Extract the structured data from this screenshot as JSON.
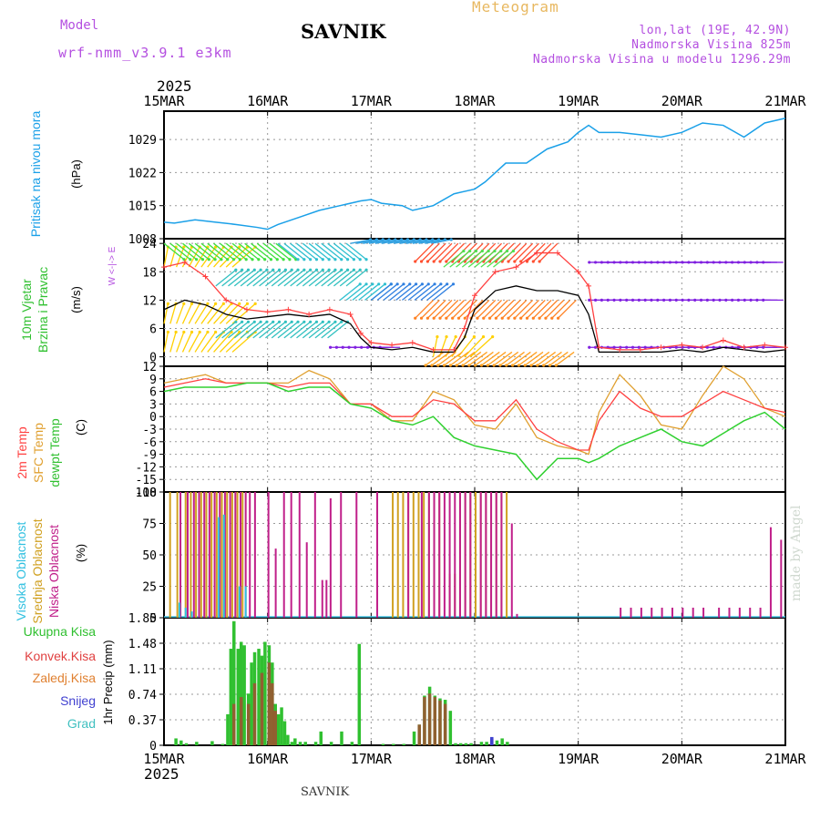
{
  "header": {
    "model_label": "Model",
    "model_value": "wrf-nmm_v3.9.1  e3km",
    "station": "SAVNIK",
    "meteogram": "Meteogram",
    "lonlat": "lon,lat (19E, 42.9N)",
    "elevation": "Nadmorska Visina 825m",
    "model_elevation": "Nadmorska Visina u modelu 1296.29m"
  },
  "year": "2025",
  "footer_station": "SAVNIK",
  "credit": "made by Angel",
  "colors": {
    "pressure": "#1aa0e8",
    "wind_speed": "#000000",
    "gust": "#ff4040",
    "temp2m": "#ff4040",
    "sfc_temp": "#e0a030",
    "dewpt": "#30d030",
    "high_cloud": "#30c0e0",
    "mid_cloud": "#d0a020",
    "low_cloud": "#c0208a",
    "total_precip": "#30c030",
    "conv_precip": "#e04040",
    "snow": "#4040d0",
    "grad": "#40c0c0"
  },
  "chart_data": [
    {
      "type": "line",
      "id": "pressure",
      "ylabel_lines": [
        "Pritisak na nivou mora"
      ],
      "unit": "(hPa)",
      "ylim": [
        1008,
        1035
      ],
      "yticks": [
        1008,
        1015,
        1022,
        1029
      ],
      "x_categories": [
        "15MAR",
        "16MAR",
        "17MAR",
        "18MAR",
        "19MAR",
        "20MAR",
        "21MAR"
      ],
      "x_days": [
        0,
        1,
        2,
        3,
        4,
        5,
        6
      ],
      "series": [
        {
          "name": "Pressure",
          "x": [
            0,
            0.1,
            0.3,
            0.5,
            0.7,
            0.9,
            1.0,
            1.1,
            1.3,
            1.5,
            1.7,
            1.9,
            2.0,
            2.1,
            2.3,
            2.4,
            2.6,
            2.8,
            3.0,
            3.1,
            3.2,
            3.3,
            3.5,
            3.7,
            3.9,
            4.0,
            4.1,
            4.2,
            4.4,
            4.6,
            4.8,
            5.0,
            5.2,
            5.4,
            5.6,
            5.8,
            6.0
          ],
          "y": [
            1011.5,
            1011.3,
            1012.0,
            1011.5,
            1011.0,
            1010.4,
            1010.0,
            1011.0,
            1012.5,
            1014.0,
            1015.0,
            1016.0,
            1016.3,
            1015.5,
            1015.0,
            1014.0,
            1015.0,
            1017.5,
            1018.5,
            1020.0,
            1022.0,
            1024.0,
            1024.0,
            1027.0,
            1028.5,
            1030.5,
            1032.0,
            1030.5,
            1030.5,
            1030.0,
            1029.5,
            1030.5,
            1032.5,
            1032.0,
            1029.5,
            1032.5,
            1033.5
          ]
        }
      ]
    },
    {
      "type": "line",
      "id": "wind",
      "ylabel_lines": [
        "10m Vjetar",
        "Brzina i Pravac"
      ],
      "unit": "(m/s)",
      "ylim": [
        -2,
        25
      ],
      "yticks": [
        0,
        6,
        12,
        18,
        24
      ],
      "compass": "W <-|-> E",
      "series": [
        {
          "name": "Wind speed",
          "x": [
            0,
            0.2,
            0.4,
            0.6,
            0.8,
            1.0,
            1.2,
            1.4,
            1.6,
            1.8,
            1.9,
            2.0,
            2.2,
            2.4,
            2.6,
            2.8,
            2.9,
            3.0,
            3.2,
            3.4,
            3.6,
            3.8,
            4.0,
            4.1,
            4.2,
            4.4,
            4.6,
            4.8,
            5.0,
            5.2,
            5.4,
            5.6,
            5.8,
            6.0
          ],
          "y": [
            10,
            12,
            11,
            9,
            8,
            8.5,
            9,
            8.5,
            9,
            7,
            4,
            2,
            1.5,
            2,
            1,
            1,
            4,
            10,
            14,
            15,
            14,
            14,
            13,
            9,
            1,
            1,
            1,
            1,
            1.5,
            1,
            2,
            1.5,
            1,
            1.5
          ]
        },
        {
          "name": "Gust",
          "x": [
            0,
            0.2,
            0.4,
            0.6,
            0.8,
            1.0,
            1.2,
            1.4,
            1.6,
            1.8,
            1.9,
            2.0,
            2.2,
            2.4,
            2.6,
            2.8,
            2.9,
            3.0,
            3.2,
            3.4,
            3.6,
            3.8,
            4.0,
            4.1,
            4.2,
            4.4,
            4.6,
            4.8,
            5.0,
            5.2,
            5.4,
            5.6,
            5.8,
            6.0
          ],
          "y": [
            19,
            20,
            17,
            12,
            10,
            9.5,
            10,
            9,
            10,
            9,
            5,
            3,
            2.5,
            3,
            1.5,
            1.5,
            6,
            13,
            18,
            19,
            22,
            22,
            18,
            15,
            2,
            1.5,
            1.5,
            2,
            2.5,
            2,
            3.5,
            2,
            2.5,
            2
          ]
        }
      ],
      "barb_rows": [
        {
          "level": 1,
          "x_from": 0.0,
          "x_to": 0.7,
          "direction": "fan",
          "color": "#ffd000"
        },
        {
          "level": 7,
          "x_from": 0.0,
          "x_to": 0.7,
          "direction": "fan",
          "color": "#ffd000"
        },
        {
          "level": 19,
          "x_from": 0.0,
          "x_to": 0.7,
          "direction": "fan",
          "color": "#ffd000"
        },
        {
          "level": 24,
          "x_from": 0.0,
          "x_to": 1.1,
          "direction": "se",
          "color": "#40e040"
        },
        {
          "level": 4,
          "x_from": 0.5,
          "x_to": 1.6,
          "direction": "ne",
          "color": "#30c0c0"
        },
        {
          "level": 15,
          "x_from": 0.5,
          "x_to": 1.8,
          "direction": "ne",
          "color": "#30c0c0"
        },
        {
          "level": 24,
          "x_from": 1.1,
          "x_to": 1.8,
          "direction": "se",
          "color": "#30c0d0"
        },
        {
          "level": 12,
          "x_from": 1.7,
          "x_to": 2.0,
          "direction": "ne",
          "color": "#30c0d0"
        },
        {
          "level": 2,
          "x_from": 1.8,
          "x_to": 2.3,
          "direction": "w",
          "color": "#8020e0"
        },
        {
          "level": 12,
          "x_from": 2.0,
          "x_to": 2.6,
          "direction": "ne",
          "color": "#3080e0"
        },
        {
          "level": 24,
          "x_from": 1.8,
          "x_to": 2.6,
          "direction": "ne",
          "color": "#30a0e0"
        },
        {
          "level": 0,
          "x_from": 2.6,
          "x_to": 3.0,
          "direction": "fan",
          "color": "#ffd000"
        },
        {
          "level": 12,
          "x_from": 2.6,
          "x_to": 4.0,
          "direction": "sw",
          "color": "#ff8020"
        },
        {
          "level": 24,
          "x_from": 2.6,
          "x_to": 3.8,
          "direction": "sw",
          "color": "#ff5030"
        },
        {
          "level": 1,
          "x_from": 2.7,
          "x_to": 4.0,
          "direction": "sw",
          "color": "#ffa020"
        },
        {
          "level": 19,
          "x_from": 2.7,
          "x_to": 3.2,
          "direction": "ne",
          "color": "#50e050"
        },
        {
          "level": 2,
          "x_from": 4.3,
          "x_to": 6.0,
          "direction": "w",
          "color": "#8020e0"
        },
        {
          "level": 12,
          "x_from": 4.3,
          "x_to": 6.0,
          "direction": "w",
          "color": "#8020e0"
        },
        {
          "level": 20,
          "x_from": 4.3,
          "x_to": 6.0,
          "direction": "w",
          "color": "#8020e0"
        }
      ]
    },
    {
      "type": "line",
      "id": "temperature",
      "ylabel_lines": [
        "2m Temp",
        "SFC Temp",
        "dewpt Temp"
      ],
      "unit": "(C)",
      "ylim": [
        -18,
        12
      ],
      "yticks": [
        12,
        9,
        6,
        3,
        0,
        -3,
        -6,
        -9,
        -12,
        -15,
        -18
      ],
      "series": [
        {
          "name": "2m Temp",
          "x": [
            0,
            0.2,
            0.4,
            0.6,
            0.8,
            1.0,
            1.2,
            1.4,
            1.6,
            1.8,
            2.0,
            2.2,
            2.4,
            2.6,
            2.8,
            3.0,
            3.2,
            3.4,
            3.6,
            3.8,
            4.0,
            4.1,
            4.2,
            4.4,
            4.6,
            4.8,
            5.0,
            5.2,
            5.4,
            5.6,
            5.8,
            6.0
          ],
          "y": [
            7,
            8,
            9,
            8,
            8,
            8,
            7,
            8,
            8,
            3,
            3,
            0,
            0,
            4,
            3,
            -1,
            -1,
            4,
            -3,
            -6,
            -8,
            -8,
            -1,
            6,
            2,
            0,
            0,
            3,
            6,
            4,
            2,
            1
          ]
        },
        {
          "name": "SFC Temp",
          "x": [
            0,
            0.2,
            0.4,
            0.6,
            0.8,
            1.0,
            1.2,
            1.4,
            1.6,
            1.8,
            2.0,
            2.2,
            2.4,
            2.6,
            2.8,
            3.0,
            3.2,
            3.4,
            3.6,
            3.8,
            4.0,
            4.1,
            4.2,
            4.4,
            4.6,
            4.8,
            5.0,
            5.2,
            5.4,
            5.6,
            5.8,
            6.0
          ],
          "y": [
            8,
            9,
            10,
            8,
            8,
            8,
            8,
            11,
            9,
            3,
            3,
            -1,
            -1,
            6,
            4,
            -2,
            -3,
            3,
            -5,
            -7,
            -8,
            -9,
            1,
            10,
            5,
            -2,
            -3,
            5,
            12,
            9,
            2,
            0
          ]
        },
        {
          "name": "Dewpoint",
          "x": [
            0,
            0.2,
            0.4,
            0.6,
            0.8,
            1.0,
            1.2,
            1.4,
            1.6,
            1.8,
            2.0,
            2.2,
            2.4,
            2.6,
            2.8,
            3.0,
            3.2,
            3.4,
            3.6,
            3.8,
            4.0,
            4.1,
            4.2,
            4.4,
            4.6,
            4.8,
            5.0,
            5.2,
            5.4,
            5.6,
            5.8,
            6.0
          ],
          "y": [
            6,
            7,
            7,
            7,
            8,
            8,
            6,
            7,
            7,
            3,
            2,
            -1,
            -2,
            0,
            -5,
            -7,
            -8,
            -9,
            -15,
            -10,
            -10,
            -11,
            -10,
            -7,
            -5,
            -3,
            -6,
            -7,
            -4,
            -1,
            1,
            -3
          ]
        }
      ]
    },
    {
      "type": "bar",
      "id": "clouds",
      "ylabel_lines": [
        "Visoka Oblacnost",
        "Srednja Oblacnost",
        "Niska Oblacnost"
      ],
      "unit": "(%)",
      "ylim": [
        0,
        100
      ],
      "yticks": [
        0,
        25,
        50,
        75,
        100
      ],
      "series": [
        {
          "name": "Srednja",
          "x": [
            0.05,
            0.12,
            0.2,
            0.25,
            0.3,
            0.35,
            0.4,
            0.45,
            0.5,
            0.55,
            0.6,
            0.65,
            0.7,
            0.75,
            2.2,
            2.25,
            2.3,
            2.35,
            2.4,
            2.45,
            2.5,
            2.55,
            2.6,
            2.65,
            2.75,
            2.8,
            2.85,
            2.9,
            2.95,
            3.0,
            3.05,
            3.1,
            3.15,
            3.2,
            3.25,
            3.3
          ],
          "y": [
            100,
            100,
            100,
            100,
            100,
            100,
            100,
            100,
            100,
            100,
            100,
            100,
            100,
            100,
            100,
            100,
            100,
            100,
            100,
            100,
            100,
            100,
            100,
            100,
            35,
            35,
            100,
            100,
            100,
            100,
            100,
            100,
            100,
            100,
            100,
            100
          ]
        },
        {
          "name": "Niska",
          "x": [
            0.15,
            0.22,
            0.28,
            0.33,
            0.38,
            0.43,
            0.48,
            0.53,
            0.58,
            0.63,
            0.68,
            0.73,
            0.78,
            0.82,
            0.87,
            1.0,
            1.07,
            1.15,
            1.22,
            1.3,
            1.37,
            1.45,
            1.52,
            1.56,
            1.6,
            1.7,
            1.85,
            2.05,
            2.35,
            2.48,
            2.55,
            2.6,
            2.65,
            2.7,
            2.75,
            2.8,
            2.85,
            2.9,
            2.95,
            3.05,
            3.1,
            3.15,
            3.2,
            3.25,
            3.35,
            3.4,
            4.4,
            4.5,
            4.6,
            4.7,
            4.8,
            4.9,
            5.0,
            5.1,
            5.2,
            5.35,
            5.45,
            5.55,
            5.65,
            5.75,
            5.85,
            5.95
          ],
          "y": [
            100,
            100,
            100,
            100,
            100,
            100,
            100,
            100,
            100,
            100,
            100,
            100,
            100,
            100,
            100,
            100,
            55,
            100,
            100,
            100,
            60,
            100,
            30,
            30,
            95,
            100,
            100,
            100,
            100,
            100,
            100,
            100,
            100,
            100,
            100,
            100,
            100,
            100,
            100,
            100,
            100,
            100,
            100,
            100,
            75,
            3,
            8,
            8,
            8,
            8,
            8,
            8,
            8,
            8,
            8,
            8,
            8,
            8,
            8,
            8,
            72,
            62
          ]
        },
        {
          "name": "Visoka",
          "x": [
            0.14,
            0.2,
            0.26,
            0.52,
            0.57,
            0.72,
            0.78
          ],
          "y": [
            12,
            8,
            5,
            80,
            82,
            25,
            25
          ]
        }
      ]
    },
    {
      "type": "bar",
      "id": "precip",
      "ylabel_lines": [
        "1hr Precip (mm)"
      ],
      "legend": [
        "Ukupna Kisa",
        "Konvek.Kisa",
        "Zaledj.Kisa",
        "Snijeg",
        "Grad"
      ],
      "ylim": [
        0,
        1.85
      ],
      "yticks": [
        0,
        0.37,
        0.74,
        1.11,
        1.48,
        1.85
      ],
      "series": [
        {
          "name": "Ukupna Kisa",
          "x": [
            0.1,
            0.15,
            0.2,
            0.3,
            0.45,
            0.55,
            0.6,
            0.63,
            0.66,
            0.7,
            0.73,
            0.76,
            0.8,
            0.83,
            0.86,
            0.9,
            0.93,
            0.96,
            1.0,
            1.03,
            1.06,
            1.09,
            1.12,
            1.15,
            1.18,
            1.22,
            1.25,
            1.3,
            1.35,
            1.45,
            1.5,
            1.6,
            1.7,
            1.8,
            1.87,
            2.1,
            2.2,
            2.3,
            2.4,
            2.45,
            2.5,
            2.55,
            2.6,
            2.65,
            2.7,
            2.75,
            2.8,
            2.85,
            2.9,
            2.95,
            3.05,
            3.1,
            3.15,
            3.2,
            3.25,
            3.3
          ],
          "y": [
            0.1,
            0.07,
            0.03,
            0.05,
            0.06,
            0.02,
            0.45,
            1.4,
            1.8,
            1.4,
            1.5,
            1.45,
            0.75,
            1.2,
            1.35,
            1.4,
            1.3,
            1.5,
            1.45,
            1.2,
            0.6,
            0.45,
            0.55,
            0.35,
            0.15,
            0.05,
            0.1,
            0.05,
            0.05,
            0.05,
            0.2,
            0.05,
            0.2,
            0.05,
            1.47,
            0.02,
            0.02,
            0.02,
            0.2,
            0.3,
            0.72,
            0.85,
            0.72,
            0.68,
            0.66,
            0.5,
            0.03,
            0.03,
            0.03,
            0.03,
            0.05,
            0.05,
            0.1,
            0.07,
            0.1,
            0.05
          ]
        },
        {
          "name": "Konvek.Kisa",
          "x": [
            0.66,
            0.73,
            0.8,
            0.86,
            0.93,
            1.0,
            1.03,
            1.06,
            2.45,
            2.5,
            2.55,
            2.6,
            2.65,
            2.7
          ],
          "y": [
            0.6,
            0.7,
            0.6,
            0.9,
            1.05,
            1.2,
            0.9,
            0.5,
            0.3,
            0.7,
            0.75,
            0.7,
            0.65,
            0.6
          ]
        },
        {
          "name": "Snijeg",
          "x": [
            3.15
          ],
          "y": [
            0.12
          ]
        }
      ]
    }
  ]
}
